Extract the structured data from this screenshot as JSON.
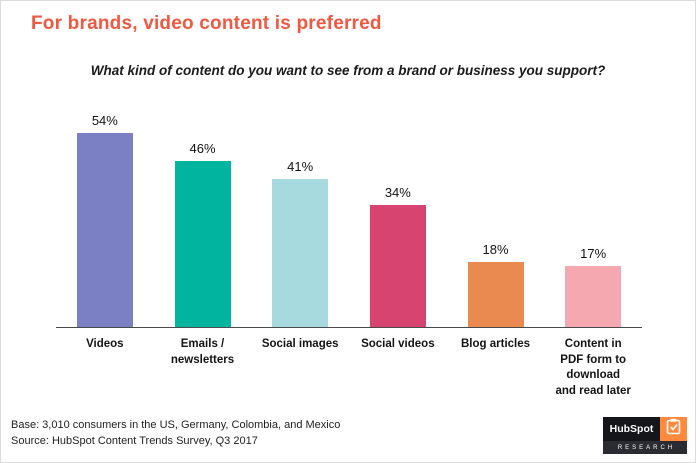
{
  "title": "For brands, video content is preferred",
  "subtitle": "What kind of content do you want to see from a brand or business you support?",
  "chart_data": {
    "type": "bar",
    "title": "What kind of content do you want to see from a brand or business you support?",
    "categories": [
      "Videos",
      "Emails /\nnewsletters",
      "Social images",
      "Social videos",
      "Blog articles",
      "Content in\nPDF form to\ndownload\nand read later"
    ],
    "values": [
      54,
      46,
      41,
      34,
      18,
      17
    ],
    "value_labels": [
      "54%",
      "46%",
      "41%",
      "34%",
      "18%",
      "17%"
    ],
    "bar_colors": [
      "#7B80C4",
      "#00B4A0",
      "#A6DADF",
      "#D84470",
      "#EA8A51",
      "#F6A8B0"
    ],
    "xlabel": "",
    "ylabel": "",
    "ylim": [
      0,
      60
    ],
    "grid": false,
    "legend": false
  },
  "footer": {
    "base": "Base: 3,010 consumers in the US, Germany, Colombia, and Mexico",
    "source": "Source: HubSpot Content Trends Survey, Q3 2017"
  },
  "logo": {
    "brand": "HubSpot",
    "sub": "RESEARCH",
    "accent": "#FF8A3E"
  },
  "colors": {
    "title": "#F2573F"
  }
}
